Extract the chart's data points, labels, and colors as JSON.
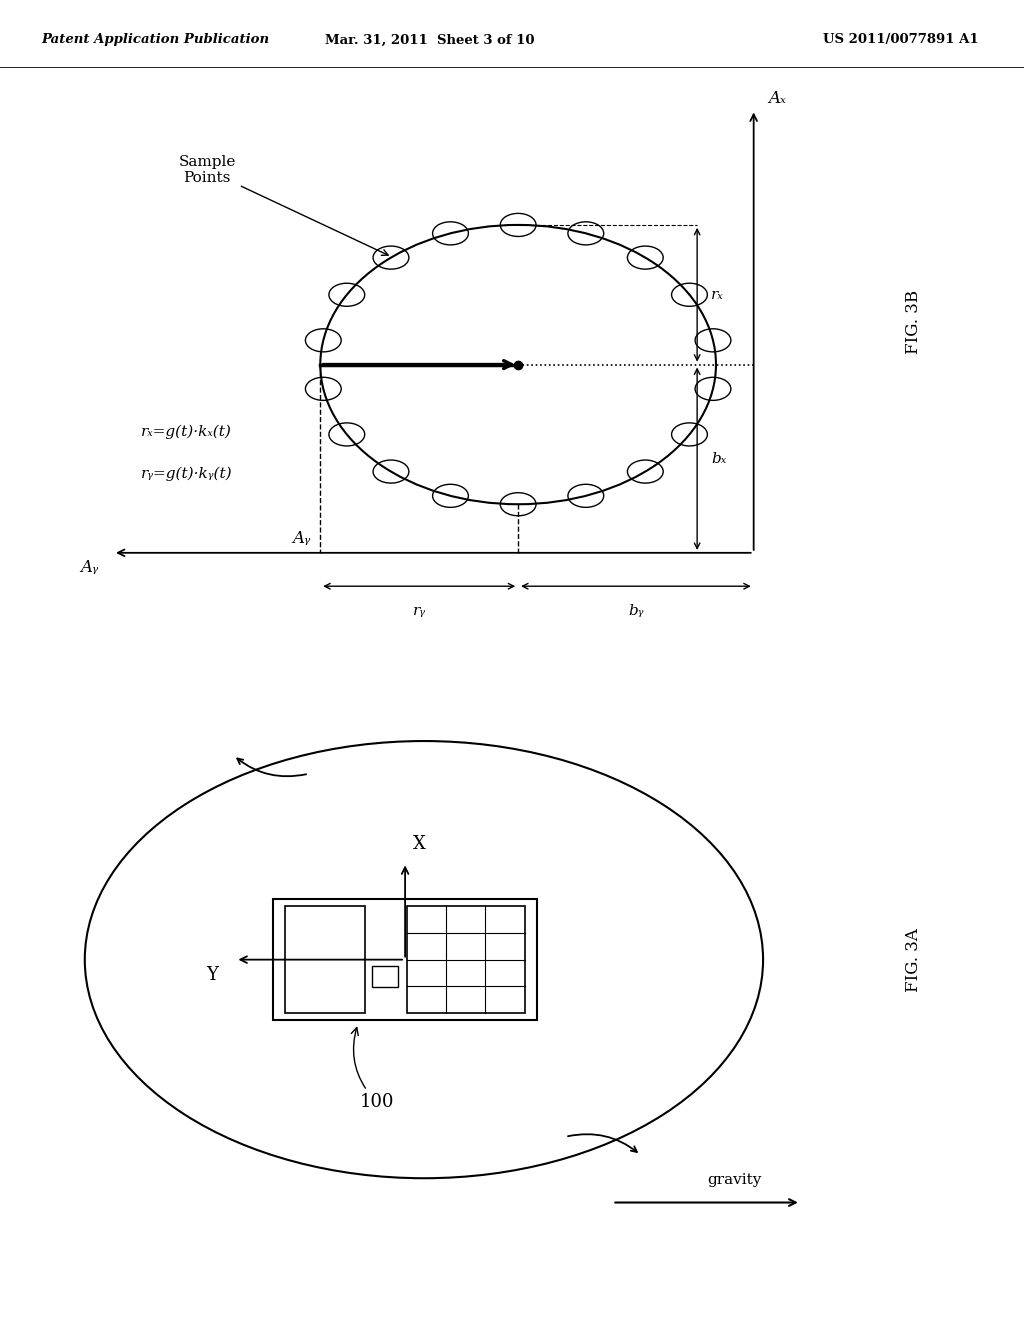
{
  "bg_color": "#ffffff",
  "header_left": "Patent Application Publication",
  "header_center": "Mar. 31, 2011  Sheet 3 of 10",
  "header_right": "US 2011/0077891 A1",
  "header_fontsize": 10,
  "fig3b_label": "FIG. 3B",
  "fig3a_label": "FIG. 3A",
  "sample_points_label": "Sample\nPoints",
  "eq1": "rₓ=g(t)·kₓ(t)",
  "eq2": "rᵧ=g(t)·kᵧ(t)",
  "gravity_label": "gravity",
  "device_label": "100",
  "axis_x_label": "X",
  "axis_y_label": "Y",
  "ax_label": "Aₓ",
  "ay_label": "Aᵧ",
  "bx_label": "bₓ",
  "by_label": "bᵧ",
  "rx_label": "rₓ",
  "ry_label": "rᵧ"
}
